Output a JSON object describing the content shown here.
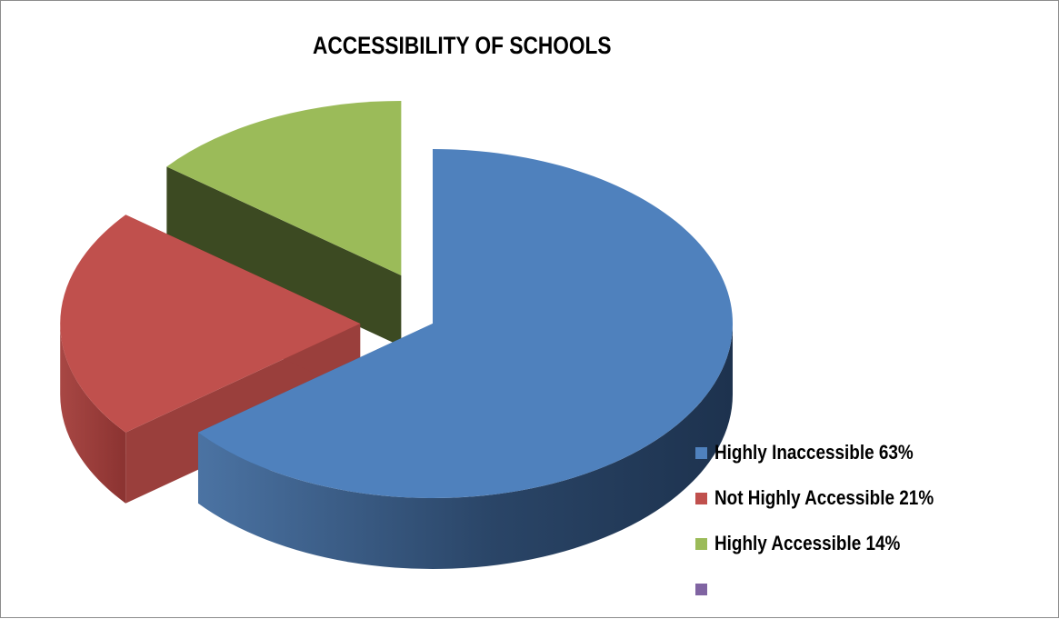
{
  "chart_data": {
    "type": "pie",
    "title": "ACCESSIBILITY OF SCHOOLS",
    "categories": [
      "Highly Inaccessible 63%",
      "Not Highly Accessible 21%",
      "Highly Accessible 14%",
      ""
    ],
    "values": [
      63,
      21,
      14,
      0
    ],
    "colors": [
      "#4f81bd",
      "#c0504d",
      "#9bbb59",
      "#8064a2"
    ],
    "legend_position": "right",
    "style": "3d-exploded"
  }
}
